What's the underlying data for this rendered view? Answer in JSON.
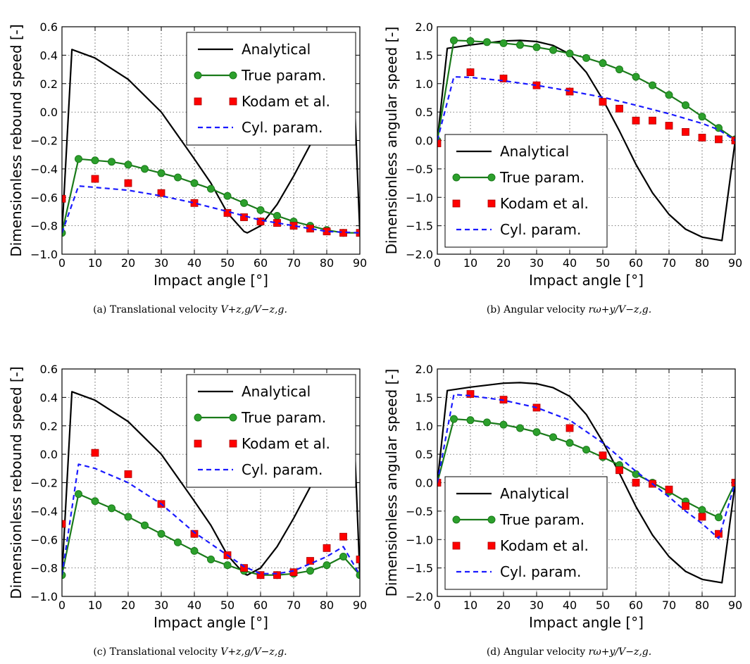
{
  "figure": {
    "subplots": [
      {
        "letter": "(a)",
        "caption_text": "Translational velocity",
        "caption_math": "V+z,g/V−z,g."
      },
      {
        "letter": "(b)",
        "caption_text": "Angular velocity",
        "caption_math": "rω+y/V−z,g."
      },
      {
        "letter": "(c)",
        "caption_text": "Translational velocity",
        "caption_math": "V+z,g/V−z,g."
      },
      {
        "letter": "(d)",
        "caption_text": "Angular velocity",
        "caption_math": "rω+y/V−z,g."
      }
    ]
  },
  "colors": {
    "analytical": "#000000",
    "true_param": "#1a7a1a",
    "true_marker": "#2ca02c",
    "kodam": "#ff0000",
    "cyl": "#1a1aff"
  },
  "chart_data": [
    {
      "type": "line",
      "xlabel": "Impact angle [°]",
      "ylabel": "Dimensionless rebound speed [-]",
      "xlim": [
        0,
        90
      ],
      "ylim": [
        -1.0,
        0.6
      ],
      "xticks": [
        "0",
        "10",
        "20",
        "30",
        "40",
        "50",
        "60",
        "70",
        "80",
        "90"
      ],
      "yticks": [
        "−1.0",
        "−0.8",
        "−0.6",
        "−0.4",
        "−0.2",
        "0.0",
        "0.2",
        "0.4",
        "0.6"
      ],
      "grid": true,
      "legend_position": "top-right",
      "series": [
        {
          "name": "Analytical",
          "style": "solid",
          "x": [
            0,
            3,
            10,
            20,
            30,
            40,
            45,
            50,
            55,
            56,
            60,
            65,
            70,
            75,
            80,
            85,
            87,
            88,
            90
          ],
          "y": [
            -0.85,
            0.44,
            0.38,
            0.23,
            0.0,
            -0.33,
            -0.5,
            -0.71,
            -0.84,
            -0.85,
            -0.8,
            -0.65,
            -0.45,
            -0.23,
            0.05,
            0.38,
            0.43,
            0.3,
            -0.85
          ]
        },
        {
          "name": "True param.",
          "style": "marker-line",
          "x": [
            0,
            5,
            10,
            15,
            20,
            25,
            30,
            35,
            40,
            45,
            50,
            55,
            60,
            65,
            70,
            75,
            80,
            85,
            90
          ],
          "y": [
            -0.85,
            -0.33,
            -0.34,
            -0.35,
            -0.37,
            -0.4,
            -0.43,
            -0.46,
            -0.5,
            -0.54,
            -0.59,
            -0.64,
            -0.69,
            -0.73,
            -0.77,
            -0.8,
            -0.83,
            -0.85,
            -0.85
          ]
        },
        {
          "name": "Kodam et al.",
          "style": "square",
          "x": [
            0,
            10,
            20,
            30,
            40,
            50,
            55,
            60,
            65,
            70,
            75,
            80,
            85,
            90
          ],
          "y": [
            -0.61,
            -0.47,
            -0.5,
            -0.57,
            -0.64,
            -0.71,
            -0.74,
            -0.77,
            -0.78,
            -0.8,
            -0.82,
            -0.84,
            -0.85,
            -0.85
          ]
        },
        {
          "name": "Cyl. param.",
          "style": "dashed",
          "x": [
            0,
            5,
            10,
            20,
            30,
            40,
            50,
            60,
            70,
            80,
            90
          ],
          "y": [
            -0.85,
            -0.52,
            -0.53,
            -0.55,
            -0.59,
            -0.64,
            -0.7,
            -0.76,
            -0.8,
            -0.84,
            -0.85
          ]
        }
      ]
    },
    {
      "type": "line",
      "xlabel": "Impact angle [°]",
      "ylabel": "Dimensionless angular speed [-]",
      "xlim": [
        0,
        90
      ],
      "ylim": [
        -2.0,
        2.0
      ],
      "xticks": [
        "0",
        "10",
        "20",
        "30",
        "40",
        "50",
        "60",
        "70",
        "80",
        "90"
      ],
      "yticks": [
        "−2.0",
        "−1.5",
        "−1.0",
        "−0.5",
        "0.0",
        "0.5",
        "1.0",
        "1.5",
        "2.0"
      ],
      "grid": true,
      "legend_position": "bottom-left",
      "series": [
        {
          "name": "Analytical",
          "style": "solid",
          "x": [
            0,
            3,
            10,
            20,
            25,
            30,
            35,
            40,
            45,
            50,
            55,
            60,
            65,
            70,
            75,
            80,
            85,
            86,
            90
          ],
          "y": [
            0.0,
            1.62,
            1.68,
            1.75,
            1.76,
            1.74,
            1.67,
            1.52,
            1.2,
            0.72,
            0.17,
            -0.42,
            -0.92,
            -1.3,
            -1.56,
            -1.7,
            -1.75,
            -1.76,
            0.0
          ]
        },
        {
          "name": "True param.",
          "style": "marker-line",
          "x": [
            0,
            5,
            10,
            15,
            20,
            25,
            30,
            35,
            40,
            45,
            50,
            55,
            60,
            65,
            70,
            75,
            80,
            85,
            90
          ],
          "y": [
            0.0,
            1.76,
            1.75,
            1.73,
            1.71,
            1.68,
            1.64,
            1.59,
            1.53,
            1.45,
            1.36,
            1.25,
            1.12,
            0.97,
            0.8,
            0.62,
            0.42,
            0.22,
            0.02
          ]
        },
        {
          "name": "Kodam et al.",
          "style": "square",
          "x": [
            0,
            10,
            20,
            30,
            40,
            50,
            55,
            60,
            65,
            70,
            75,
            80,
            85,
            90
          ],
          "y": [
            -0.05,
            1.2,
            1.09,
            0.97,
            0.86,
            0.68,
            0.56,
            0.35,
            0.35,
            0.26,
            0.15,
            0.05,
            0.02,
            0.0
          ]
        },
        {
          "name": "Cyl. param.",
          "style": "dashed",
          "x": [
            0,
            5,
            10,
            20,
            30,
            40,
            50,
            60,
            70,
            80,
            85,
            90
          ],
          "y": [
            0.0,
            1.12,
            1.11,
            1.05,
            0.97,
            0.87,
            0.76,
            0.62,
            0.47,
            0.3,
            0.19,
            0.0
          ]
        }
      ]
    },
    {
      "type": "line",
      "xlabel": "Impact angle [°]",
      "ylabel": "Dimensionless rebound speed [-]",
      "xlim": [
        0,
        90
      ],
      "ylim": [
        -1.0,
        0.6
      ],
      "xticks": [
        "0",
        "10",
        "20",
        "30",
        "40",
        "50",
        "60",
        "70",
        "80",
        "90"
      ],
      "yticks": [
        "−1.0",
        "−0.8",
        "−0.6",
        "−0.4",
        "−0.2",
        "0.0",
        "0.2",
        "0.4",
        "0.6"
      ],
      "grid": true,
      "legend_position": "top-right",
      "series": [
        {
          "name": "Analytical",
          "style": "solid",
          "x": [
            0,
            3,
            10,
            20,
            30,
            40,
            45,
            50,
            55,
            56,
            60,
            65,
            70,
            75,
            80,
            85,
            87,
            88,
            90
          ],
          "y": [
            -0.85,
            0.44,
            0.38,
            0.23,
            0.0,
            -0.33,
            -0.5,
            -0.71,
            -0.84,
            -0.85,
            -0.8,
            -0.65,
            -0.45,
            -0.23,
            0.05,
            0.38,
            0.43,
            0.3,
            -0.85
          ]
        },
        {
          "name": "True param.",
          "style": "marker-line",
          "x": [
            0,
            5,
            10,
            15,
            20,
            25,
            30,
            35,
            40,
            45,
            50,
            55,
            60,
            65,
            70,
            75,
            80,
            85,
            90
          ],
          "y": [
            -0.85,
            -0.28,
            -0.33,
            -0.38,
            -0.44,
            -0.5,
            -0.56,
            -0.62,
            -0.68,
            -0.74,
            -0.78,
            -0.82,
            -0.85,
            -0.85,
            -0.84,
            -0.82,
            -0.78,
            -0.72,
            -0.85
          ]
        },
        {
          "name": "Kodam et al.",
          "style": "square",
          "x": [
            0,
            10,
            20,
            30,
            40,
            50,
            55,
            60,
            65,
            70,
            75,
            80,
            85,
            90
          ],
          "y": [
            -0.49,
            0.01,
            -0.14,
            -0.35,
            -0.56,
            -0.71,
            -0.8,
            -0.85,
            -0.85,
            -0.83,
            -0.75,
            -0.66,
            -0.58,
            -0.74
          ]
        },
        {
          "name": "Cyl. param.",
          "style": "dashed",
          "x": [
            0,
            5,
            10,
            20,
            30,
            40,
            50,
            55,
            60,
            65,
            70,
            75,
            80,
            85,
            90
          ],
          "y": [
            -0.85,
            -0.07,
            -0.1,
            -0.2,
            -0.35,
            -0.55,
            -0.71,
            -0.79,
            -0.84,
            -0.84,
            -0.82,
            -0.77,
            -0.72,
            -0.65,
            -0.85
          ]
        }
      ]
    },
    {
      "type": "line",
      "xlabel": "Impact angle [°]",
      "ylabel": "Dimensionless angular speed [-]",
      "xlim": [
        0,
        90
      ],
      "ylim": [
        -2.0,
        2.0
      ],
      "xticks": [
        "0",
        "10",
        "20",
        "30",
        "40",
        "50",
        "60",
        "70",
        "80",
        "90"
      ],
      "yticks": [
        "−2.0",
        "−1.5",
        "−1.0",
        "−0.5",
        "0.0",
        "0.5",
        "1.0",
        "1.5",
        "2.0"
      ],
      "grid": true,
      "legend_position": "bottom-left",
      "series": [
        {
          "name": "Analytical",
          "style": "solid",
          "x": [
            0,
            3,
            10,
            20,
            25,
            30,
            35,
            40,
            45,
            50,
            55,
            60,
            65,
            70,
            75,
            80,
            85,
            86,
            90
          ],
          "y": [
            0.0,
            1.62,
            1.68,
            1.75,
            1.76,
            1.74,
            1.67,
            1.52,
            1.2,
            0.72,
            0.17,
            -0.42,
            -0.92,
            -1.3,
            -1.56,
            -1.7,
            -1.75,
            -1.76,
            0.0
          ]
        },
        {
          "name": "True param.",
          "style": "marker-line",
          "x": [
            0,
            5,
            10,
            15,
            20,
            25,
            30,
            35,
            40,
            45,
            50,
            55,
            60,
            65,
            70,
            75,
            80,
            85,
            90
          ],
          "y": [
            0.0,
            1.12,
            1.1,
            1.06,
            1.02,
            0.96,
            0.89,
            0.8,
            0.7,
            0.58,
            0.45,
            0.31,
            0.15,
            0.0,
            -0.16,
            -0.33,
            -0.48,
            -0.61,
            0.0
          ]
        },
        {
          "name": "Kodam et al.",
          "style": "square",
          "x": [
            0,
            10,
            20,
            30,
            40,
            50,
            55,
            60,
            65,
            70,
            75,
            80,
            85,
            90
          ],
          "y": [
            0.0,
            1.56,
            1.46,
            1.32,
            0.96,
            0.48,
            0.22,
            0.0,
            -0.02,
            -0.12,
            -0.41,
            -0.6,
            -0.9,
            0.0
          ]
        },
        {
          "name": "Cyl. param.",
          "style": "dashed",
          "x": [
            0,
            5,
            10,
            20,
            30,
            40,
            50,
            55,
            60,
            65,
            70,
            75,
            80,
            85,
            90
          ],
          "y": [
            0.0,
            1.55,
            1.53,
            1.45,
            1.32,
            1.1,
            0.7,
            0.45,
            0.2,
            -0.02,
            -0.25,
            -0.5,
            -0.72,
            -0.98,
            0.0
          ]
        }
      ]
    }
  ]
}
